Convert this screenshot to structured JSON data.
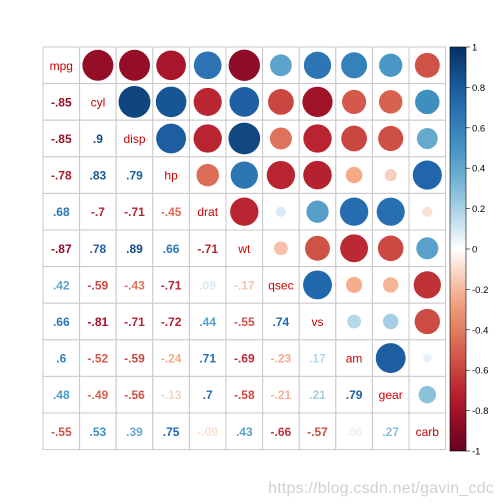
{
  "chart_data": {
    "type": "heatmap",
    "subtype": "correlation-matrix-mixed",
    "variables": [
      "mpg",
      "cyl",
      "disp",
      "hp",
      "drat",
      "wt",
      "qsec",
      "vs",
      "am",
      "gear",
      "carb"
    ],
    "matrix": [
      [
        1.0,
        -0.85,
        -0.85,
        -0.78,
        0.68,
        -0.87,
        0.42,
        0.66,
        0.6,
        0.48,
        -0.55
      ],
      [
        -0.85,
        1.0,
        0.9,
        0.83,
        -0.7,
        0.78,
        -0.59,
        -0.81,
        -0.52,
        -0.49,
        0.53
      ],
      [
        -0.85,
        0.9,
        1.0,
        0.79,
        -0.71,
        0.89,
        -0.43,
        -0.71,
        -0.59,
        -0.56,
        0.39
      ],
      [
        -0.78,
        0.83,
        0.79,
        1.0,
        -0.45,
        0.66,
        -0.71,
        -0.72,
        -0.24,
        -0.13,
        0.75
      ],
      [
        0.68,
        -0.7,
        -0.71,
        -0.45,
        1.0,
        -0.71,
        0.09,
        0.44,
        0.71,
        0.7,
        -0.09
      ],
      [
        -0.87,
        0.78,
        0.89,
        0.66,
        -0.71,
        1.0,
        -0.17,
        -0.55,
        -0.69,
        -0.58,
        0.43
      ],
      [
        0.42,
        -0.59,
        -0.43,
        -0.71,
        0.09,
        -0.17,
        1.0,
        0.74,
        -0.23,
        -0.21,
        -0.66
      ],
      [
        0.66,
        -0.81,
        -0.71,
        -0.72,
        0.44,
        -0.55,
        0.74,
        1.0,
        0.17,
        0.21,
        -0.57
      ],
      [
        0.6,
        -0.52,
        -0.59,
        -0.24,
        0.71,
        -0.69,
        -0.23,
        0.17,
        1.0,
        0.79,
        0.06
      ],
      [
        0.48,
        -0.49,
        -0.56,
        -0.13,
        0.7,
        -0.58,
        -0.21,
        0.21,
        0.79,
        1.0,
        0.27
      ],
      [
        -0.55,
        0.53,
        0.39,
        0.75,
        -0.09,
        0.43,
        -0.66,
        -0.57,
        0.06,
        0.27,
        1.0
      ]
    ],
    "upper": "circle",
    "lower": "number",
    "diagonal": "label",
    "color_range": [
      -1,
      1
    ],
    "colorbar_ticks": [
      "1",
      "0.8",
      "0.6",
      "0.4",
      "0.2",
      "0",
      "-0.2",
      "-0.4",
      "-0.6",
      "-0.8",
      "-1"
    ],
    "colors": {
      "negative_strong": "#67001f",
      "negative_mid": "#d6604d",
      "neutral": "#ffffff",
      "positive_mid": "#4393c3",
      "positive_strong": "#053061",
      "diag_label": "#cc0000",
      "grid": "#c9c9c9"
    },
    "legend": "right"
  },
  "watermark": "https://blog.csdn.net/gavin_cdc"
}
